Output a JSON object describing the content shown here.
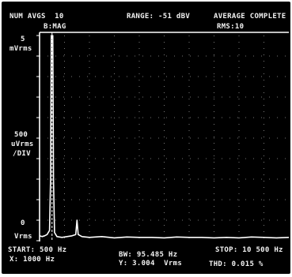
{
  "header": {
    "num_avgs": "NUM AVGS  10",
    "range": "RANGE: -51 dBV",
    "status": "AVERAGE COMPLETE",
    "rms": "RMS:10",
    "trace_label": "B:MAG"
  },
  "yaxis": {
    "top_value": "5",
    "top_unit": "mVrms",
    "scale_value": "500",
    "scale_unit": "uVrms",
    "scale_per": "/DIV",
    "bottom_value": "0",
    "bottom_unit": "Vrms"
  },
  "footer": {
    "start": "START: 500 Hz",
    "bw": "BW: 95.485 Hz",
    "stop": "STOP: 10 500 Hz",
    "x_readout": "X: 1000 Hz",
    "y_readout": "Y: 3.004  Vrms",
    "thd": "THD: 0.015 %"
  },
  "colors": {
    "background": "#000000",
    "trace": "#ffffff",
    "text": "#f2f2f2",
    "grid": "#9a9a9a"
  },
  "chart_data": {
    "type": "line",
    "title": "",
    "xlabel": "",
    "ylabel": "",
    "x_unit": "Hz",
    "y_unit": "mVrms",
    "xlim": [
      500,
      10500
    ],
    "ylim": [
      0,
      5
    ],
    "x_divisions": 10,
    "y_divisions": 10,
    "grid": true,
    "marker": {
      "x": 1000,
      "y_vrms": 3.004
    },
    "series": [
      {
        "x": [
          500,
          600,
          700,
          800,
          900,
          940,
          970,
          1000,
          1030,
          1060,
          1100,
          1200,
          1400,
          1600,
          1800,
          1950,
          2000,
          2050,
          2200,
          2500,
          3000,
          3500,
          4000,
          4500,
          5000,
          5500,
          6000,
          6500,
          7000,
          7500,
          8000,
          8500,
          9000,
          9500,
          10000,
          10500
        ],
        "y": [
          0.12,
          0.1,
          0.12,
          0.15,
          0.25,
          1.5,
          5,
          5,
          5,
          1.5,
          0.2,
          0.1,
          0.08,
          0.1,
          0.12,
          0.15,
          0.5,
          0.15,
          0.1,
          0.08,
          0.1,
          0.07,
          0.09,
          0.08,
          0.08,
          0.07,
          0.09,
          0.08,
          0.08,
          0.07,
          0.08,
          0.07,
          0.09,
          0.08,
          0.07,
          0.08
        ]
      }
    ]
  }
}
